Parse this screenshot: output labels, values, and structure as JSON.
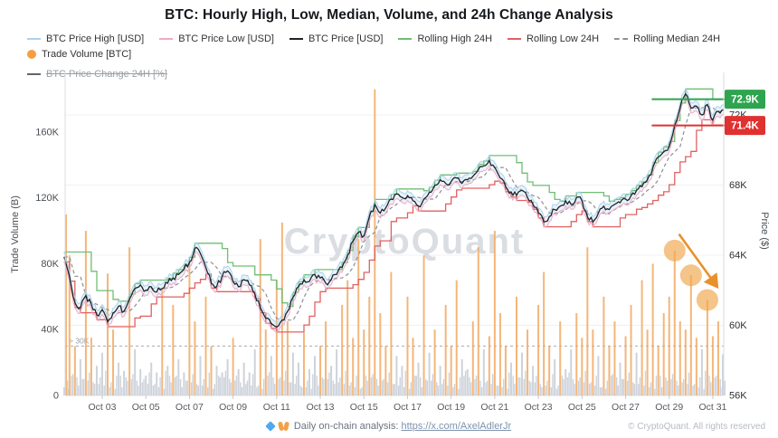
{
  "title": "BTC: Hourly High, Low, Median, Volume, and 24h Change Analysis",
  "watermark": "CryptoQuant",
  "legend": {
    "items": [
      {
        "label": "BTC Price High [USD]",
        "color": "#a9d3ee",
        "swatch": "line",
        "disabled": false
      },
      {
        "label": "BTC Price Low [USD]",
        "color": "#f2a9c4",
        "swatch": "line",
        "disabled": false
      },
      {
        "label": "BTC Price [USD]",
        "color": "#1f2328",
        "swatch": "line",
        "disabled": false
      },
      {
        "label": "Rolling High 24H",
        "color": "#6fbf73",
        "swatch": "line",
        "disabled": false
      },
      {
        "label": "Rolling Low 24H",
        "color": "#e06161",
        "swatch": "line",
        "disabled": false
      },
      {
        "label": "Rolling Median 24H",
        "color": "#8d9096",
        "swatch": "dash",
        "disabled": false
      },
      {
        "label": "Trade Volume [BTC]",
        "color": "#f59e42",
        "swatch": "dot",
        "disabled": false
      },
      {
        "label": "BTC Price Change 24H [%]",
        "color": "#5f6670",
        "swatch": "line",
        "disabled": true
      }
    ]
  },
  "axes": {
    "left": {
      "title": "Trade Volume (B)",
      "ticks": [
        {
          "v": 0,
          "label": "0"
        },
        {
          "v": 40,
          "label": "40K"
        },
        {
          "v": 80,
          "label": "80K"
        },
        {
          "v": 120,
          "label": "120K"
        },
        {
          "v": 160,
          "label": "160K"
        }
      ]
    },
    "right": {
      "title": "Price ($)",
      "ticks": [
        {
          "v": 56,
          "label": "56K"
        },
        {
          "v": 60,
          "label": "60K"
        },
        {
          "v": 64,
          "label": "64K"
        },
        {
          "v": 68,
          "label": "68K"
        },
        {
          "v": 72,
          "label": "72K"
        }
      ]
    },
    "x": {
      "ticks": [
        {
          "day": 3,
          "label": "Oct 03"
        },
        {
          "day": 5,
          "label": "Oct 05"
        },
        {
          "day": 7,
          "label": "Oct 07"
        },
        {
          "day": 9,
          "label": "Oct 09"
        },
        {
          "day": 11,
          "label": "Oct 11"
        },
        {
          "day": 13,
          "label": "Oct 13"
        },
        {
          "day": 15,
          "label": "Oct 15"
        },
        {
          "day": 17,
          "label": "Oct 17"
        },
        {
          "day": 19,
          "label": "Oct 19"
        },
        {
          "day": 21,
          "label": "Oct 21"
        },
        {
          "day": 23,
          "label": "Oct 23"
        },
        {
          "day": 25,
          "label": "Oct 25"
        },
        {
          "day": 27,
          "label": "Oct 27"
        },
        {
          "day": 29,
          "label": "Oct 29"
        },
        {
          "day": 31,
          "label": "Oct 31"
        }
      ]
    }
  },
  "annotations": {
    "rolling_high_badge": {
      "label": "72.9K",
      "value": 72.9,
      "color": "#2ea44f",
      "line_start_day": 28.2
    },
    "rolling_low_badge": {
      "label": "71.4K",
      "value": 71.4,
      "color": "#e03131",
      "line_start_day": 28.2
    },
    "volume_threshold": {
      "label": "> 30K",
      "value": 30
    },
    "highlight_circles": [
      {
        "day": 29.25,
        "vol": 88
      },
      {
        "day": 30.0,
        "vol": 73
      },
      {
        "day": 30.75,
        "vol": 58
      }
    ],
    "trend_arrow": {
      "from": {
        "day": 29.45,
        "vol": 98
      },
      "to": {
        "day": 31.2,
        "vol": 66
      },
      "color": "#e8912b"
    }
  },
  "footer": {
    "icons": [
      "gem-icon",
      "raised-hands-icon"
    ],
    "text": "Daily on-chain analysis: ",
    "link": "https://x.com/AxelAdlerJr",
    "copyright": "© CryptoQuant. All rights reserved"
  },
  "chart_data": {
    "type": "line+bar",
    "title": "BTC: Hourly High, Low, Median, Volume, and 24h Change Analysis",
    "x_unit": "day of October (6-hour sampling)",
    "x_start": 1.25,
    "x_step_days": 0.25,
    "price_axis_label": "Price ($)",
    "price_axis_range_K": [
      56,
      74.4
    ],
    "volume_axis_label": "Trade Volume (B)",
    "volume_axis_range_K": [
      0,
      196
    ],
    "grid": "horizontal only",
    "legend_position": "top",
    "series": [
      {
        "name": "BTC Price [USD]",
        "unit": "K USD",
        "values": [
          63.9,
          62.8,
          61.3,
          61.0,
          61.7,
          61.2,
          60.6,
          60.9,
          60.2,
          60.7,
          61.1,
          60.8,
          61.5,
          62.1,
          62.3,
          62.0,
          62.2,
          61.9,
          62.1,
          62.4,
          62.7,
          62.9,
          63.2,
          63.6,
          64.4,
          64.1,
          63.3,
          62.4,
          62.2,
          62.8,
          63.1,
          62.5,
          62.2,
          62.6,
          62.3,
          61.8,
          61.0,
          60.4,
          60.1,
          59.9,
          60.3,
          60.8,
          61.6,
          62.2,
          62.6,
          62.5,
          62.9,
          62.7,
          62.4,
          62.6,
          62.9,
          63.3,
          64.0,
          64.8,
          65.3,
          65.1,
          66.2,
          66.9,
          66.4,
          66.7,
          67.2,
          67.5,
          67.3,
          67.4,
          67.1,
          66.8,
          67.2,
          67.6,
          68.0,
          68.3,
          68.1,
          68.2,
          68.4,
          68.1,
          68.3,
          68.5,
          68.9,
          69.1,
          69.4,
          69.0,
          68.4,
          67.9,
          67.6,
          67.4,
          67.7,
          67.3,
          66.9,
          66.4,
          65.9,
          66.2,
          66.6,
          66.8,
          67.1,
          66.9,
          67.3,
          67.1,
          66.2,
          65.9,
          66.4,
          66.8,
          66.6,
          66.9,
          67.0,
          67.2,
          67.4,
          67.7,
          67.9,
          68.3,
          69.0,
          69.6,
          69.9,
          70.2,
          71.4,
          72.4,
          73.2,
          72.4,
          72.5,
          72.0,
          72.6,
          71.7,
          72.2,
          72.3
        ]
      },
      {
        "name": "Trade Volume [BTC]",
        "unit": "K BTC",
        "values": [
          110,
          85,
          30,
          22,
          100,
          35,
          18,
          26,
          74,
          40,
          20,
          15,
          90,
          28,
          16,
          12,
          20,
          14,
          65,
          18,
          55,
          22,
          14,
          80,
          45,
          24,
          60,
          30,
          18,
          14,
          22,
          35,
          16,
          20,
          14,
          28,
          95,
          40,
          24,
          70,
          105,
          45,
          26,
          20,
          38,
          16,
          24,
          30,
          45,
          18,
          28,
          55,
          70,
          35,
          95,
          40,
          60,
          186,
          50,
          30,
          75,
          24,
          18,
          60,
          35,
          20,
          85,
          26,
          40,
          18,
          55,
          30,
          70,
          22,
          16,
          45,
          90,
          28,
          36,
          100,
          50,
          30,
          20,
          60,
          26,
          40,
          18,
          55,
          75,
          30,
          22,
          45,
          16,
          28,
          50,
          35,
          90,
          40,
          24,
          60,
          30,
          45,
          20,
          36,
          55,
          26,
          70,
          40,
          80,
          30,
          50,
          60,
          88,
          45,
          40,
          73,
          35,
          28,
          58,
          36,
          45,
          25
        ]
      }
    ],
    "derived_series": {
      "high_low_band_offset_K": 0.28,
      "rolling_window_points": 5,
      "note": "BTC Price High/Low = price ± offset; Rolling High/Low/Median = trailing 24h window of band"
    },
    "colors": {
      "volume_bar_above_threshold": "#f2a963",
      "volume_bar_below_threshold": "#ced3db",
      "band_fill": "rgba(168,208,235,0.27)",
      "gridline": "#f1f1f3",
      "axis_line": "#d8dbe0"
    }
  }
}
